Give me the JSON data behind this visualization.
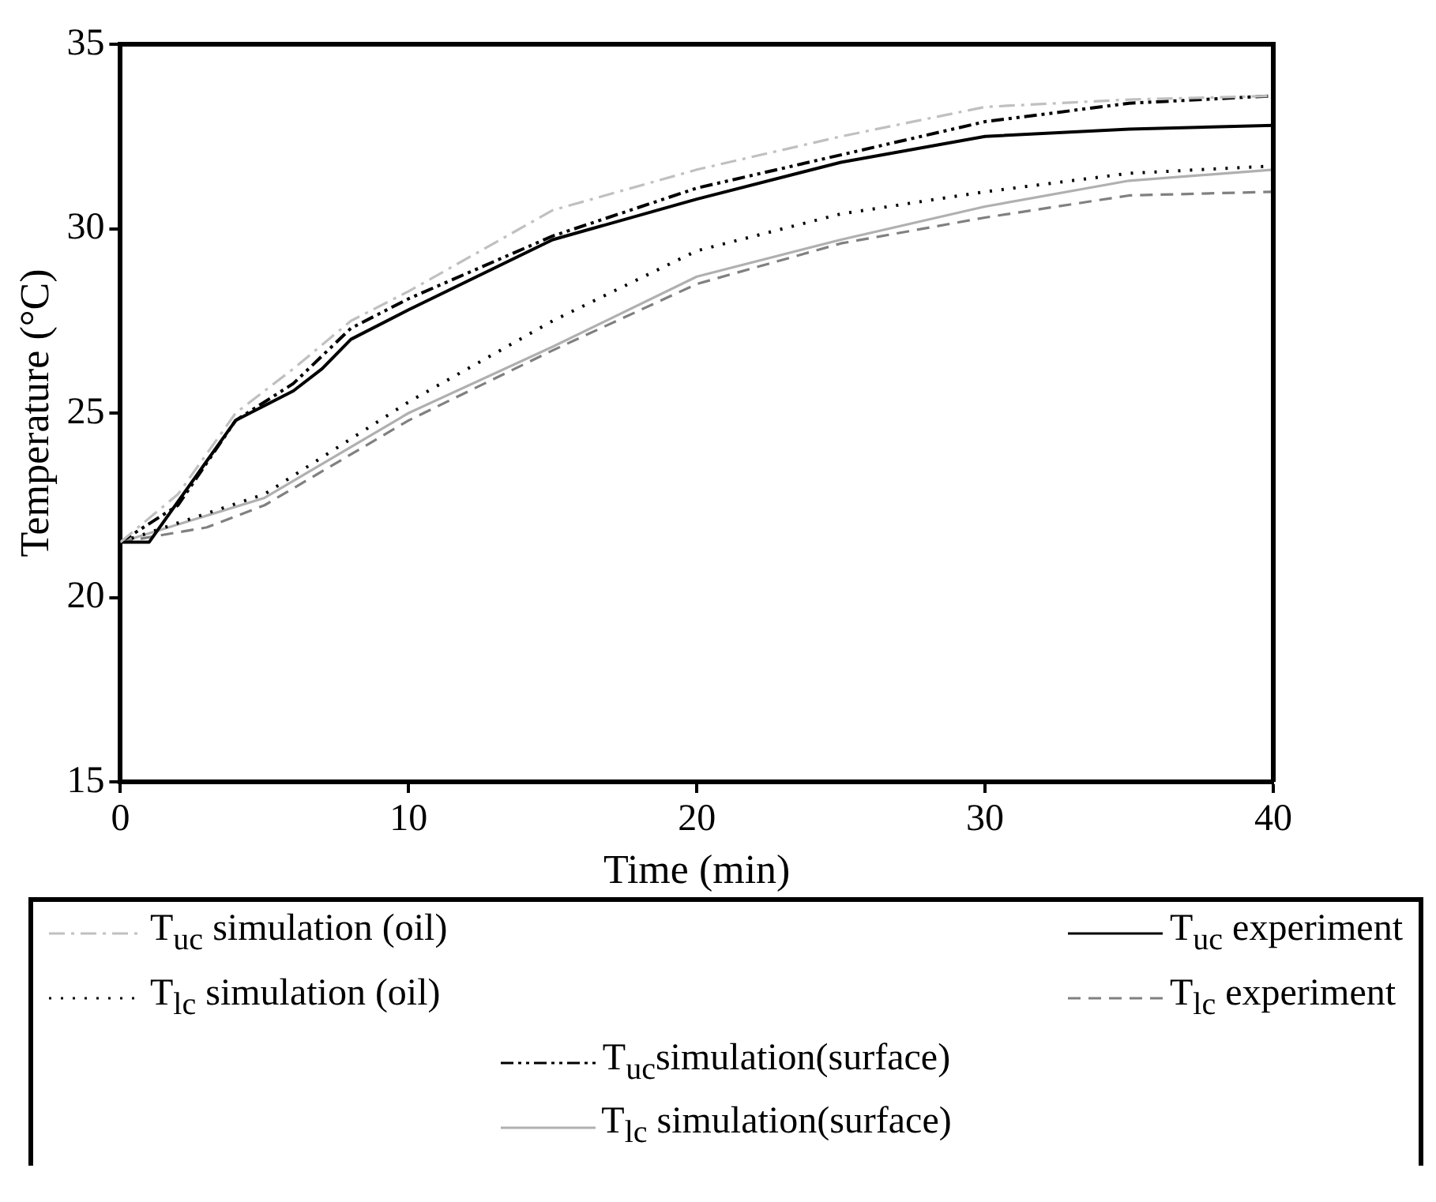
{
  "chart_data": {
    "type": "line",
    "xlabel": "Time (min)",
    "ylabel": "Temperature (°C)",
    "xlim": [
      0,
      40
    ],
    "xticks": [
      0,
      10,
      20,
      30,
      40
    ],
    "ylim": [
      15,
      35
    ],
    "yticks": [
      15,
      20,
      25,
      30,
      35
    ],
    "grid": false,
    "legend": "bottom",
    "marker": "none",
    "series": [
      {
        "name": "T$_{uc}$ simulation (oil)",
        "color": "#c0c0c0",
        "line_style": "dashdot",
        "x": [
          0,
          2,
          4,
          6,
          8,
          10,
          15,
          20,
          25,
          30,
          35,
          40
        ],
        "values": [
          21.5,
          22.8,
          25,
          26.2,
          27.5,
          28.3,
          30.5,
          31.6,
          32.5,
          33.3,
          33.5,
          33.6
        ]
      },
      {
        "name": "T$_{uc}$ experiment",
        "color": "#000000",
        "line_style": "solid",
        "x": [
          0,
          1,
          4,
          6,
          7,
          8,
          10,
          15,
          20,
          25,
          30,
          35,
          40
        ],
        "values": [
          21.5,
          21.5,
          24.8,
          25.6,
          26.2,
          27.0,
          27.8,
          29.7,
          30.8,
          31.8,
          32.5,
          32.7,
          32.8
        ]
      },
      {
        "name": "T$_{lc}$ simulation (oil)",
        "color": "#000000",
        "line_style": "dotted",
        "x": [
          0,
          5,
          10,
          15,
          20,
          25,
          30,
          35,
          40
        ],
        "values": [
          21.5,
          22.8,
          25.3,
          27.5,
          29.4,
          30.4,
          31.0,
          31.5,
          31.7
        ]
      },
      {
        "name": "T$_{lc}$ experiment",
        "color": "#808080",
        "line_style": "dashed",
        "x": [
          0,
          3,
          5,
          10,
          15,
          20,
          25,
          30,
          35,
          40
        ],
        "values": [
          21.5,
          21.9,
          22.5,
          24.8,
          26.7,
          28.5,
          29.6,
          30.3,
          30.9,
          31.0
        ]
      },
      {
        "name": "T$_{uc}$simulation(surface)",
        "color": "#000000",
        "line_style": "dashdotdot",
        "x": [
          0,
          2,
          4,
          6,
          8,
          10,
          15,
          20,
          25,
          30,
          35,
          40
        ],
        "values": [
          21.5,
          22.5,
          24.8,
          25.8,
          27.3,
          28.1,
          29.8,
          31.1,
          32.0,
          32.9,
          33.4,
          33.6
        ]
      },
      {
        "name": "T$_{lc}$ simulation(surface)",
        "color": "#b0b0b0",
        "line_style": "solid",
        "x": [
          0,
          5,
          10,
          15,
          20,
          25,
          30,
          35,
          40
        ],
        "values": [
          21.5,
          22.7,
          25.0,
          26.8,
          28.7,
          29.7,
          30.6,
          31.3,
          31.6
        ]
      }
    ]
  }
}
